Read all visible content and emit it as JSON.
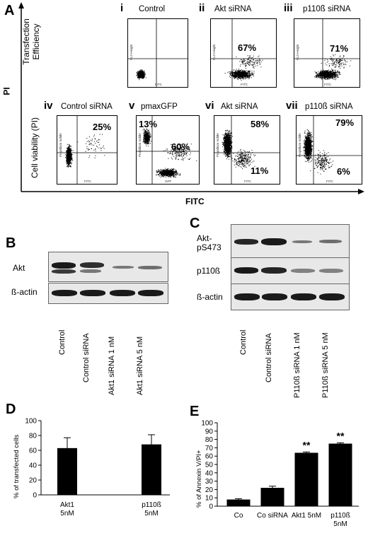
{
  "panel_labels": {
    "A": "A",
    "B": "B",
    "C": "C",
    "D": "D",
    "E": "E"
  },
  "figA": {
    "y_axis": "PI",
    "x_axis": "FITC",
    "row1_label": [
      "Transfection",
      "Efficiency"
    ],
    "row2_label": "Cell viability (PI)",
    "small_labels": {
      "fl2": "FL2-Height",
      "fitc": "FITC",
      "pi": "Propidium Iodide",
      "gfp": "GFP"
    },
    "plots": [
      {
        "roman": "i",
        "title": "Control",
        "pct_top": "",
        "pct_bottom": "",
        "pct_left": ""
      },
      {
        "roman": "ii",
        "title": "Akt siRNA",
        "pct_top": "67%",
        "pct_bottom": "",
        "pct_left": ""
      },
      {
        "roman": "iii",
        "title": "p110ß siRNA",
        "pct_top": "71%",
        "pct_bottom": "",
        "pct_left": ""
      },
      {
        "roman": "iv",
        "title": "Control siRNA",
        "pct_top": "25%",
        "pct_bottom": "",
        "pct_left": ""
      },
      {
        "roman": "v",
        "title": "pmaxGFP",
        "pct_top": "60%",
        "pct_bottom": "",
        "pct_left": "13%"
      },
      {
        "roman": "vi",
        "title": "Akt siRNA",
        "pct_top": "58%",
        "pct_bottom": "11%",
        "pct_left": ""
      },
      {
        "roman": "vii",
        "title": "p110ß siRNA",
        "pct_top": "79%",
        "pct_bottom": "6%",
        "pct_left": ""
      }
    ]
  },
  "figB": {
    "rows": [
      "Akt",
      "ß-actin"
    ],
    "lanes": [
      "Control",
      "Control siRNA",
      "Akt1 siRNA 1 nM",
      "Akt1 siRNA 5 nM"
    ]
  },
  "figC": {
    "rows": [
      "Akt-\npS473",
      "p110ß",
      "ß-actin"
    ],
    "lanes": [
      "Control",
      "Control siRNA",
      "P110ß siRNA 1 nM",
      "P110ß siRNA 5 nM"
    ]
  },
  "chart_data": [
    {
      "type": "bar",
      "categories": [
        "Akt1 5nM",
        "p110ß 5nM"
      ],
      "category_lines": [
        [
          "Akt1",
          "5nM"
        ],
        [
          "p110ß",
          "5nM"
        ]
      ],
      "values": [
        63,
        68
      ],
      "errors": [
        14,
        13
      ],
      "ylabel": "% of transfected cells",
      "ylim": [
        0,
        100
      ],
      "yticks": [
        0,
        20,
        40,
        60,
        80,
        100
      ]
    },
    {
      "type": "bar",
      "categories": [
        "Co",
        "Co siRNA",
        "Akt1 5nM",
        "p110ß 5nM"
      ],
      "category_lines": [
        [
          "Co"
        ],
        [
          "Co siRNA"
        ],
        [
          "Akt1 5nM"
        ],
        [
          "p110ß",
          "5nM"
        ]
      ],
      "values": [
        8,
        22,
        64,
        75
      ],
      "errors": [
        1,
        2,
        1,
        1
      ],
      "annotations": [
        "",
        "",
        "**",
        "**"
      ],
      "ylabel": "% of Annexin V/PI+",
      "ylim": [
        0,
        100
      ],
      "yticks": [
        0,
        10,
        20,
        30,
        40,
        50,
        60,
        70,
        80,
        90,
        100
      ]
    }
  ]
}
